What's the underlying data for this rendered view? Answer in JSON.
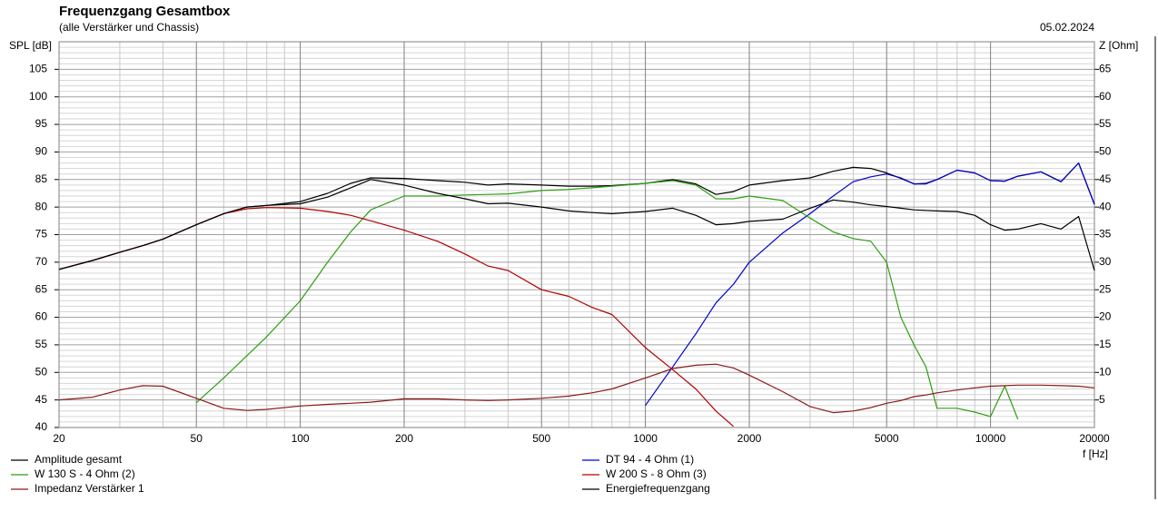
{
  "chart_data": {
    "type": "line",
    "title": "Frequenzgang Gesamtbox",
    "subtitle": "(alle Verstärker und Chassis)",
    "date": "05.02.2024",
    "y_label": "SPL [dB]",
    "y2_label": "Z [Ohm]",
    "x_label": "f [Hz]",
    "x_scale": "log",
    "grid": true,
    "xlim": [
      20,
      20000
    ],
    "xticks": [
      20,
      50,
      100,
      200,
      500,
      1000,
      2000,
      5000,
      10000,
      20000
    ],
    "xminorticks": [
      30,
      40,
      60,
      70,
      80,
      90,
      300,
      400,
      600,
      700,
      800,
      900,
      3000,
      4000,
      6000,
      7000,
      8000,
      9000
    ],
    "ylim": [
      40,
      110
    ],
    "yticks": [
      40,
      45,
      50,
      55,
      60,
      65,
      70,
      75,
      80,
      85,
      90,
      95,
      100,
      105
    ],
    "yminorticks": [
      41,
      42,
      43,
      44,
      46,
      47,
      48,
      49,
      51,
      52,
      53,
      54,
      56,
      57,
      58,
      59,
      61,
      62,
      63,
      64,
      66,
      67,
      68,
      69,
      71,
      72,
      73,
      74,
      76,
      77,
      78,
      79,
      81,
      82,
      83,
      84,
      86,
      87,
      88,
      89,
      91,
      92,
      93,
      94,
      96,
      97,
      98,
      99,
      101,
      102,
      103,
      104,
      106,
      107,
      108,
      109
    ],
    "y2lim": [
      0,
      70
    ],
    "y2ticks": [
      5,
      10,
      15,
      20,
      25,
      30,
      35,
      40,
      45,
      50,
      55,
      60,
      65
    ],
    "x": [
      20,
      25,
      30,
      35,
      40,
      50,
      60,
      70,
      80,
      100,
      120,
      140,
      160,
      200,
      250,
      300,
      350,
      400,
      500,
      600,
      700,
      800,
      1000,
      1200,
      1400,
      1600,
      1800,
      2000,
      2500,
      3000,
      3500,
      4000,
      4500,
      5000,
      5500,
      6000,
      6500,
      7000,
      8000,
      9000,
      10000,
      11000,
      12000,
      14000,
      16000,
      18000,
      20000
    ],
    "series": [
      {
        "name": "Amplitude gesamt",
        "color": "#000000",
        "values": [
          68.7,
          70.3,
          71.8,
          73,
          74.2,
          76.8,
          78.8,
          80,
          80.3,
          81,
          82.5,
          84.3,
          85.3,
          85.2,
          84.8,
          84.5,
          84,
          84.2,
          84,
          83.8,
          83.8,
          83.9,
          84.3,
          85,
          84.2,
          82.3,
          82.8,
          84,
          84.8,
          85.3,
          86.5,
          87.2,
          87,
          86.2,
          85.2,
          84.2,
          84.3,
          85,
          86.7,
          86.2,
          84.8,
          84.7,
          85.6,
          86.4,
          84.6,
          88,
          80.5
        ]
      },
      {
        "name": "DT 94 - 4 Ohm (1)",
        "color": "#0000cc",
        "values": [
          null,
          null,
          null,
          null,
          null,
          null,
          null,
          null,
          null,
          null,
          null,
          null,
          null,
          null,
          null,
          null,
          null,
          null,
          null,
          null,
          null,
          null,
          44,
          51,
          57,
          62.6,
          66,
          70,
          75.3,
          78.8,
          82,
          84.6,
          85.5,
          86,
          85.3,
          84.2,
          84.2,
          85,
          86.7,
          86.2,
          84.8,
          84.7,
          85.6,
          86.4,
          84.6,
          88,
          80.5
        ]
      },
      {
        "name": "W 130 S - 4 Ohm (2)",
        "color": "#2e9e12",
        "values": [
          null,
          null,
          null,
          null,
          null,
          44.5,
          49,
          53,
          56.5,
          63,
          70,
          75.5,
          79.5,
          82,
          82,
          82.2,
          82.3,
          82.4,
          83,
          83.2,
          83.5,
          83.8,
          84.3,
          84.8,
          84,
          81.5,
          81.5,
          82,
          81.2,
          78,
          75.5,
          74.3,
          73.8,
          70,
          60,
          55,
          51,
          43.5,
          43.5,
          42.8,
          42,
          47.5,
          41.5,
          null,
          null,
          null,
          null
        ]
      },
      {
        "name": "W 200 S - 8 Ohm (3)",
        "color": "#b00000",
        "values": [
          68.7,
          70.3,
          71.8,
          73,
          74.2,
          76.8,
          78.8,
          79.7,
          79.9,
          79.8,
          79.2,
          78.5,
          77.5,
          75.8,
          73.8,
          71.5,
          69.3,
          68.5,
          65,
          63.8,
          61.8,
          60.5,
          54.5,
          50.5,
          47,
          43,
          40.2,
          null,
          null,
          null,
          null,
          null,
          null,
          null,
          null,
          null,
          null,
          null,
          null,
          null,
          null,
          null,
          null,
          null,
          null,
          null,
          null
        ]
      },
      {
        "name": "Impedanz Verstärker 1",
        "color": "#8b1a1a",
        "axis": "y2",
        "values": [
          5,
          5.5,
          6.8,
          7.6,
          7.5,
          5.3,
          3.5,
          3.1,
          3.3,
          3.9,
          4.2,
          4.4,
          4.6,
          5.2,
          5.2,
          5,
          4.9,
          5,
          5.3,
          5.7,
          6.3,
          7,
          9,
          10.7,
          11.3,
          11.5,
          10.8,
          9.5,
          6.5,
          3.8,
          2.7,
          3,
          3.6,
          4.4,
          4.9,
          5.6,
          5.9,
          6.3,
          6.8,
          7.2,
          7.5,
          7.6,
          7.7,
          7.7,
          7.6,
          7.5,
          7.2
        ]
      },
      {
        "name": "Energiefrequenzgang",
        "color": "#000000",
        "values": [
          68.7,
          70.3,
          71.8,
          73,
          74.2,
          76.8,
          78.8,
          80,
          80.3,
          80.6,
          81.8,
          83.5,
          85,
          84,
          82.5,
          81.5,
          80.6,
          80.7,
          80,
          79.3,
          79,
          78.8,
          79.2,
          79.8,
          78.5,
          76.8,
          77,
          77.4,
          77.8,
          79.8,
          81.3,
          80.9,
          80.4,
          80.1,
          79.8,
          79.5,
          79.4,
          79.3,
          79.2,
          78.5,
          76.8,
          75.8,
          76,
          77,
          76,
          78.3,
          68.5
        ]
      }
    ]
  }
}
